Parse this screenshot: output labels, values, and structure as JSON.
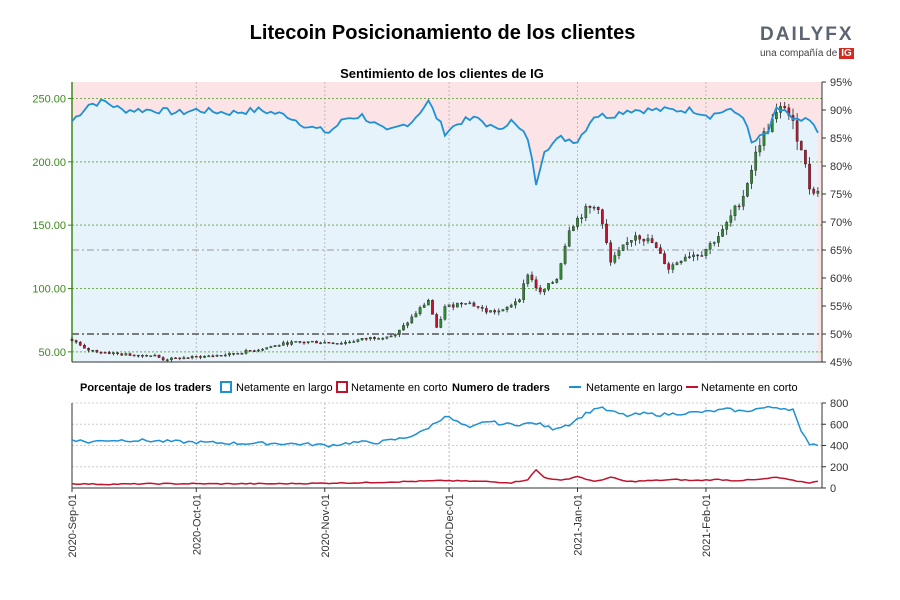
{
  "header": {
    "title": "Litecoin Posicionamiento de los clientes",
    "logo_text": "DAILYFX",
    "logo_sub": "una compañía de",
    "logo_badge": "IG"
  },
  "chart_data": [
    {
      "type": "candlestick+line",
      "title": "Sentimiento de los clientes de IG",
      "left_axis": {
        "ticks": [
          50,
          100,
          150,
          200,
          250
        ],
        "tick_labels": [
          "50.00",
          "100.00",
          "150.00",
          "200.00",
          "250.00"
        ],
        "range": [
          42,
          263
        ]
      },
      "right_axis": {
        "ticks": [
          45,
          50,
          55,
          60,
          65,
          70,
          75,
          80,
          85,
          90,
          95
        ],
        "tick_labels": [
          "45%",
          "50%",
          "55%",
          "60%",
          "65%",
          "70%",
          "75%",
          "80%",
          "85%",
          "90%",
          "95%"
        ],
        "range": [
          45,
          95
        ]
      },
      "reference_lines_pct": [
        50,
        65
      ],
      "x_tick_labels": [
        "2020-Sep-01",
        "2020-Oct-01",
        "2020-Nov-01",
        "2020-Dec-01",
        "2021-Jan-01",
        "2021-Feb-01"
      ],
      "x_tick_days": [
        0,
        30,
        61,
        91,
        122,
        153
      ],
      "price_keypoints": [
        [
          0,
          60
        ],
        [
          3,
          52
        ],
        [
          7,
          50
        ],
        [
          12,
          48
        ],
        [
          20,
          47
        ],
        [
          22,
          44
        ],
        [
          30,
          46
        ],
        [
          38,
          48
        ],
        [
          45,
          52
        ],
        [
          52,
          57
        ],
        [
          58,
          58
        ],
        [
          65,
          57
        ],
        [
          72,
          61
        ],
        [
          78,
          63
        ],
        [
          82,
          77
        ],
        [
          86,
          91
        ],
        [
          88,
          68
        ],
        [
          90,
          85
        ],
        [
          95,
          90
        ],
        [
          100,
          82
        ],
        [
          104,
          82
        ],
        [
          108,
          93
        ],
        [
          110,
          112
        ],
        [
          113,
          96
        ],
        [
          117,
          108
        ],
        [
          120,
          148
        ],
        [
          124,
          162
        ],
        [
          127,
          165
        ],
        [
          130,
          120
        ],
        [
          133,
          132
        ],
        [
          136,
          143
        ],
        [
          140,
          136
        ],
        [
          144,
          116
        ],
        [
          148,
          126
        ],
        [
          152,
          128
        ],
        [
          157,
          145
        ],
        [
          162,
          174
        ],
        [
          166,
          216
        ],
        [
          169,
          232
        ],
        [
          172,
          245
        ],
        [
          176,
          212
        ],
        [
          178,
          180
        ],
        [
          180,
          176
        ]
      ],
      "long_pct_keypoints": [
        [
          0,
          88
        ],
        [
          4,
          91
        ],
        [
          8,
          91.5
        ],
        [
          12,
          90
        ],
        [
          20,
          90
        ],
        [
          26,
          89.5
        ],
        [
          30,
          90
        ],
        [
          38,
          89.5
        ],
        [
          45,
          90
        ],
        [
          52,
          89
        ],
        [
          57,
          87
        ],
        [
          62,
          86
        ],
        [
          66,
          88.5
        ],
        [
          70,
          89
        ],
        [
          76,
          86
        ],
        [
          82,
          88
        ],
        [
          86,
          91.5
        ],
        [
          90,
          86
        ],
        [
          94,
          88
        ],
        [
          98,
          88.5
        ],
        [
          102,
          86.5
        ],
        [
          106,
          88
        ],
        [
          110,
          85
        ],
        [
          112,
          77
        ],
        [
          114,
          83
        ],
        [
          118,
          85
        ],
        [
          122,
          84.5
        ],
        [
          126,
          89
        ],
        [
          130,
          89
        ],
        [
          134,
          90
        ],
        [
          140,
          90
        ],
        [
          146,
          90
        ],
        [
          150,
          90
        ],
        [
          154,
          89
        ],
        [
          158,
          90
        ],
        [
          162,
          89
        ],
        [
          164,
          84
        ],
        [
          168,
          86
        ],
        [
          170,
          90
        ],
        [
          172,
          90
        ],
        [
          174,
          88
        ],
        [
          178,
          88
        ],
        [
          180,
          86
        ]
      ],
      "series": [
        {
          "name": "Netamente en largo",
          "color": "#1e90d6"
        },
        {
          "name": "Netamente en corto",
          "color": "#c0142e"
        }
      ]
    },
    {
      "type": "line",
      "y_ticks": [
        0,
        200,
        400,
        600,
        800
      ],
      "range": [
        0,
        800
      ],
      "long_traders_keypoints": [
        [
          0,
          460
        ],
        [
          4,
          430
        ],
        [
          8,
          450
        ],
        [
          15,
          450
        ],
        [
          22,
          440
        ],
        [
          30,
          430
        ],
        [
          40,
          420
        ],
        [
          50,
          420
        ],
        [
          58,
          410
        ],
        [
          62,
          400
        ],
        [
          68,
          430
        ],
        [
          74,
          430
        ],
        [
          80,
          470
        ],
        [
          84,
          520
        ],
        [
          88,
          620
        ],
        [
          90,
          680
        ],
        [
          92,
          640
        ],
        [
          96,
          560
        ],
        [
          100,
          630
        ],
        [
          104,
          600
        ],
        [
          108,
          600
        ],
        [
          112,
          610
        ],
        [
          116,
          560
        ],
        [
          120,
          600
        ],
        [
          124,
          700
        ],
        [
          127,
          760
        ],
        [
          130,
          720
        ],
        [
          134,
          680
        ],
        [
          138,
          700
        ],
        [
          142,
          690
        ],
        [
          146,
          700
        ],
        [
          150,
          710
        ],
        [
          154,
          720
        ],
        [
          158,
          740
        ],
        [
          162,
          720
        ],
        [
          166,
          750
        ],
        [
          170,
          760
        ],
        [
          174,
          740
        ],
        [
          176,
          520
        ],
        [
          178,
          420
        ],
        [
          180,
          410
        ]
      ],
      "short_traders_keypoints": [
        [
          0,
          40
        ],
        [
          8,
          35
        ],
        [
          20,
          40
        ],
        [
          30,
          40
        ],
        [
          40,
          40
        ],
        [
          50,
          40
        ],
        [
          60,
          45
        ],
        [
          70,
          50
        ],
        [
          80,
          60
        ],
        [
          90,
          70
        ],
        [
          100,
          60
        ],
        [
          106,
          50
        ],
        [
          110,
          80
        ],
        [
          112,
          170
        ],
        [
          114,
          100
        ],
        [
          118,
          70
        ],
        [
          122,
          110
        ],
        [
          126,
          60
        ],
        [
          130,
          100
        ],
        [
          134,
          60
        ],
        [
          140,
          70
        ],
        [
          146,
          80
        ],
        [
          150,
          70
        ],
        [
          156,
          80
        ],
        [
          160,
          70
        ],
        [
          166,
          80
        ],
        [
          170,
          100
        ],
        [
          174,
          70
        ],
        [
          178,
          50
        ],
        [
          180,
          60
        ]
      ]
    }
  ],
  "legend": {
    "pct_title": "Porcentaje de los traders",
    "pct_long": "Netamente en largo",
    "pct_short": "Netamente en corto",
    "num_title": "Numero de traders",
    "num_long": "Netamente en largo",
    "num_short": "Netamente en corto"
  },
  "colors": {
    "long": "#1e90d6",
    "short": "#c0142e",
    "long_fill": "#e6f3fb",
    "short_fill": "#fbe3e6",
    "up_candle": "#2e8b2e",
    "down_candle": "#c0142e",
    "left_axis": "#3a8a1a"
  }
}
